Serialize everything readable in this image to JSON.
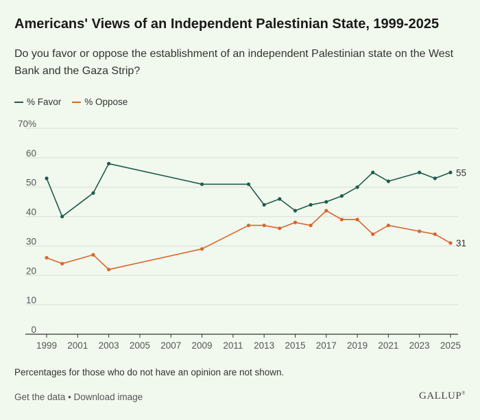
{
  "header": {
    "title": "Americans' Views of an Independent Palestinian State, 1999-2025",
    "subtitle": "Do you favor or oppose the establishment of an independent Palestinian state on the West Bank and the Gaza Strip?"
  },
  "note": "Percentages for those who do not have an opinion are not shown.",
  "footer": {
    "get_data": "Get the data",
    "separator": " • ",
    "download": "Download image",
    "logo": "GALLUP",
    "logo_mark": "®"
  },
  "chart_data": {
    "type": "line",
    "title": "Americans' Views of an Independent Palestinian State, 1999-2025",
    "xlabel": "",
    "ylabel": "",
    "xlim": [
      1999,
      2025
    ],
    "ylim": [
      0,
      70
    ],
    "x_ticks": [
      1999,
      2001,
      2003,
      2005,
      2007,
      2009,
      2011,
      2013,
      2015,
      2017,
      2019,
      2021,
      2023,
      2025
    ],
    "y_ticks": [
      0,
      10,
      20,
      30,
      40,
      50,
      60,
      70
    ],
    "y_tick_labels": [
      "0",
      "10",
      "20",
      "30",
      "40",
      "50",
      "60",
      "70%"
    ],
    "grid": true,
    "legend_position": "top-left",
    "series": [
      {
        "name": "% Favor",
        "color": "#1d5c4d",
        "end_label": "55",
        "x": [
          1999,
          2000,
          2002,
          2003,
          2009,
          2012,
          2013,
          2014,
          2015,
          2016,
          2017,
          2018,
          2019,
          2020,
          2021,
          2023,
          2024,
          2025
        ],
        "values": [
          53,
          40,
          48,
          58,
          51,
          51,
          44,
          46,
          42,
          44,
          45,
          47,
          50,
          55,
          52,
          55,
          53,
          55
        ]
      },
      {
        "name": "% Oppose",
        "color": "#d9652b",
        "end_label": "31",
        "x": [
          1999,
          2000,
          2002,
          2003,
          2009,
          2012,
          2013,
          2014,
          2015,
          2016,
          2017,
          2018,
          2019,
          2020,
          2021,
          2023,
          2024,
          2025
        ],
        "values": [
          26,
          24,
          27,
          22,
          29,
          37,
          37,
          36,
          38,
          37,
          42,
          39,
          39,
          34,
          37,
          35,
          34,
          31
        ]
      }
    ]
  }
}
